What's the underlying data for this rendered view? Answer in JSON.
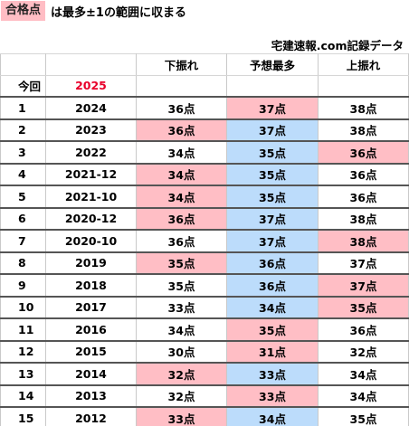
{
  "legend": {
    "swatch_label": "合格点",
    "description": "は最多±1の範囲に収まる",
    "swatch_color": "#ffbec5"
  },
  "source": "宅建速報.com記録データ",
  "table": {
    "headers": [
      "",
      "",
      "下振れ",
      "予想最多",
      "上振れ"
    ],
    "current_row": {
      "label": "今回",
      "year": "2025"
    },
    "colors": {
      "pink": "#ffbec5",
      "blue": "#bcdcfb",
      "year_highlight": "#e8002a"
    },
    "rows": [
      {
        "index": "1",
        "year": "2024",
        "low": "36点",
        "mid": "37点",
        "high": "38点",
        "low_bg": "",
        "mid_bg": "pink",
        "high_bg": ""
      },
      {
        "index": "2",
        "year": "2023",
        "low": "36点",
        "mid": "37点",
        "high": "38点",
        "low_bg": "pink",
        "mid_bg": "blue",
        "high_bg": ""
      },
      {
        "index": "3",
        "year": "2022",
        "low": "34点",
        "mid": "35点",
        "high": "36点",
        "low_bg": "",
        "mid_bg": "blue",
        "high_bg": "pink"
      },
      {
        "index": "4",
        "year": "2021-12",
        "low": "34点",
        "mid": "35点",
        "high": "36点",
        "low_bg": "pink",
        "mid_bg": "blue",
        "high_bg": ""
      },
      {
        "index": "5",
        "year": "2021-10",
        "low": "34点",
        "mid": "35点",
        "high": "36点",
        "low_bg": "pink",
        "mid_bg": "blue",
        "high_bg": ""
      },
      {
        "index": "6",
        "year": "2020-12",
        "low": "36点",
        "mid": "37点",
        "high": "38点",
        "low_bg": "pink",
        "mid_bg": "blue",
        "high_bg": ""
      },
      {
        "index": "7",
        "year": "2020-10",
        "low": "36点",
        "mid": "37点",
        "high": "38点",
        "low_bg": "",
        "mid_bg": "blue",
        "high_bg": "pink"
      },
      {
        "index": "8",
        "year": "2019",
        "low": "35点",
        "mid": "36点",
        "high": "37点",
        "low_bg": "pink",
        "mid_bg": "blue",
        "high_bg": ""
      },
      {
        "index": "9",
        "year": "2018",
        "low": "35点",
        "mid": "36点",
        "high": "37点",
        "low_bg": "",
        "mid_bg": "blue",
        "high_bg": "pink"
      },
      {
        "index": "10",
        "year": "2017",
        "low": "33点",
        "mid": "34点",
        "high": "35点",
        "low_bg": "",
        "mid_bg": "blue",
        "high_bg": "pink"
      },
      {
        "index": "11",
        "year": "2016",
        "low": "34点",
        "mid": "35点",
        "high": "36点",
        "low_bg": "",
        "mid_bg": "pink",
        "high_bg": ""
      },
      {
        "index": "12",
        "year": "2015",
        "low": "30点",
        "mid": "31点",
        "high": "32点",
        "low_bg": "",
        "mid_bg": "pink",
        "high_bg": ""
      },
      {
        "index": "13",
        "year": "2014",
        "low": "32点",
        "mid": "33点",
        "high": "34点",
        "low_bg": "pink",
        "mid_bg": "blue",
        "high_bg": ""
      },
      {
        "index": "14",
        "year": "2013",
        "low": "32点",
        "mid": "33点",
        "high": "34点",
        "low_bg": "",
        "mid_bg": "pink",
        "high_bg": ""
      },
      {
        "index": "15",
        "year": "2012",
        "low": "33点",
        "mid": "34点",
        "high": "35点",
        "low_bg": "pink",
        "mid_bg": "blue",
        "high_bg": ""
      }
    ]
  }
}
